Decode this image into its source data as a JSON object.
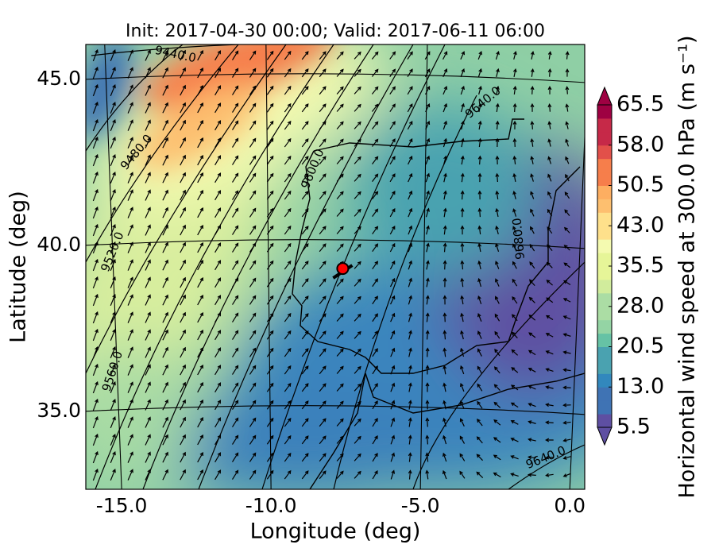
{
  "chart_data": {
    "type": "map",
    "title": "Init: 2017-04-30 00:00; Valid: 2017-06-11 06:00",
    "xlabel": "Longitude (deg)",
    "ylabel": "Latitude (deg)",
    "xlim": [
      -16.2,
      0.5
    ],
    "ylim": [
      32.65,
      46.05
    ],
    "xticks": [
      {
        "value": -15,
        "label": "-15.0"
      },
      {
        "value": -10,
        "label": "-10.0"
      },
      {
        "value": -5,
        "label": "-5.0"
      },
      {
        "value": 0,
        "label": "0.0"
      }
    ],
    "yticks": [
      {
        "value": 35,
        "label": "35.0"
      },
      {
        "value": 40,
        "label": "40.0"
      },
      {
        "value": 45,
        "label": "45.0"
      }
    ],
    "colorbar": {
      "label": "Horizontal wind speed at 300.0 hPa (m s⁻¹)",
      "lim": [
        5.5,
        65.5
      ],
      "ticks": [
        5.5,
        {
          "value": 13,
          "label": "13.0"
        },
        20.5,
        {
          "value": 28,
          "label": "28.0"
        },
        35.5,
        {
          "value": 43,
          "label": "43.0"
        },
        50.5,
        {
          "value": 58,
          "label": "58.0"
        },
        65.5
      ],
      "colormap": [
        "#5e4fa2",
        "#3f73b4",
        "#3288bd",
        "#4aa2b0",
        "#66c2a5",
        "#94d4a4",
        "#abdda4",
        "#d1ec9c",
        "#e6f598",
        "#f4fab0",
        "#fee08b",
        "#fdbf6f",
        "#fdae61",
        "#f67e4b",
        "#e2504a",
        "#c62948",
        "#9e0142"
      ]
    },
    "contour_labels": [
      {
        "label": "9440.0",
        "lon": -13.2,
        "lat": 45.75,
        "angle": 12
      },
      {
        "label": "9480.0",
        "lon": -14.5,
        "lat": 42.8,
        "angle": -50
      },
      {
        "label": "9520.0",
        "lon": -15.3,
        "lat": 39.8,
        "angle": -68
      },
      {
        "label": "9560.0",
        "lon": -15.3,
        "lat": 36.2,
        "angle": -72
      },
      {
        "label": "9600.0",
        "lon": -8.6,
        "lat": 42.3,
        "angle": -68
      },
      {
        "label": "9640.0",
        "lon": -2.9,
        "lat": 44.3,
        "angle": -40
      },
      {
        "label": "9680.0",
        "lon": -1.7,
        "lat": 40.2,
        "angle": -95
      },
      {
        "label": "9640.0",
        "lon": -0.8,
        "lat": 33.6,
        "angle": -22
      }
    ],
    "marker": {
      "lon": -7.6,
      "lat": 39.3,
      "color": "#ff0000"
    }
  }
}
